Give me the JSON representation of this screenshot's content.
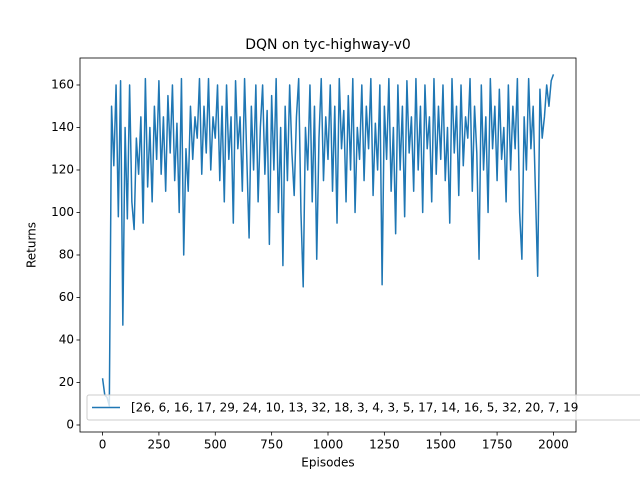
{
  "chart_data": {
    "type": "line",
    "title": "DQN on tyc-highway-v0",
    "x_label": "Episodes",
    "y_label": "Returns",
    "x": [
      0,
      10,
      20,
      30,
      40,
      50,
      60,
      70,
      80,
      90,
      100,
      110,
      120,
      130,
      140,
      150,
      160,
      170,
      180,
      190,
      200,
      210,
      220,
      230,
      240,
      250,
      260,
      270,
      280,
      290,
      300,
      310,
      320,
      330,
      340,
      350,
      360,
      370,
      380,
      390,
      400,
      410,
      420,
      430,
      440,
      450,
      460,
      470,
      480,
      490,
      500,
      510,
      520,
      530,
      540,
      550,
      560,
      570,
      580,
      590,
      600,
      610,
      620,
      630,
      640,
      650,
      660,
      670,
      680,
      690,
      700,
      710,
      720,
      730,
      740,
      750,
      760,
      770,
      780,
      790,
      800,
      810,
      820,
      830,
      840,
      850,
      860,
      870,
      880,
      890,
      900,
      910,
      920,
      930,
      940,
      950,
      960,
      970,
      980,
      990,
      1000,
      1010,
      1020,
      1030,
      1040,
      1050,
      1060,
      1070,
      1080,
      1090,
      1100,
      1110,
      1120,
      1130,
      1140,
      1150,
      1160,
      1170,
      1180,
      1190,
      1200,
      1210,
      1220,
      1230,
      1240,
      1250,
      1260,
      1270,
      1280,
      1290,
      1300,
      1310,
      1320,
      1330,
      1340,
      1350,
      1360,
      1370,
      1380,
      1390,
      1400,
      1410,
      1420,
      1430,
      1440,
      1450,
      1460,
      1470,
      1480,
      1490,
      1500,
      1510,
      1520,
      1530,
      1540,
      1550,
      1560,
      1570,
      1580,
      1590,
      1600,
      1610,
      1620,
      1630,
      1640,
      1650,
      1660,
      1670,
      1680,
      1690,
      1700,
      1710,
      1720,
      1730,
      1740,
      1750,
      1760,
      1770,
      1780,
      1790,
      1800,
      1810,
      1820,
      1830,
      1840,
      1850,
      1860,
      1870,
      1880,
      1890,
      1900,
      1910,
      1920,
      1930,
      1940,
      1950,
      1960,
      1970,
      1980,
      1990,
      2000
    ],
    "series": [
      {
        "name": "[26, 6, 16, 17, 29, 24, 10, 13, 32, 18, 3, 4, 3, 5, 17, 14, 16, 5, 32, 20, 7, 19",
        "color": "#1f77b4",
        "values": [
          22,
          14,
          13,
          9,
          150,
          122,
          160,
          98,
          162,
          47,
          140,
          97,
          160,
          105,
          92,
          135,
          118,
          145,
          95,
          163,
          112,
          140,
          105,
          150,
          125,
          162,
          118,
          145,
          110,
          155,
          128,
          160,
          115,
          142,
          100,
          163,
          80,
          130,
          110,
          150,
          125,
          145,
          135,
          163,
          118,
          150,
          128,
          163,
          120,
          145,
          135,
          160,
          115,
          150,
          105,
          160,
          125,
          145,
          95,
          162,
          130,
          145,
          110,
          163,
          125,
          88,
          150,
          120,
          160,
          105,
          140,
          160,
          118,
          148,
          85,
          155,
          120,
          163,
          100,
          140,
          75,
          150,
          115,
          160,
          128,
          108,
          145,
          163,
          100,
          65,
          140,
          120,
          160,
          105,
          150,
          78,
          135,
          163,
          115,
          145,
          125,
          160,
          110,
          150,
          95,
          163,
          130,
          148,
          105,
          155,
          120,
          163,
          100,
          140,
          125,
          160,
          115,
          150,
          130,
          163,
          108,
          142,
          120,
          160,
          66,
          150,
          125,
          163,
          110,
          140,
          90,
          160,
          120,
          150,
          98,
          162,
          128,
          145,
          110,
          163,
          120,
          150,
          100,
          160,
          130,
          145,
          105,
          163,
          118,
          150,
          125,
          160,
          115,
          140,
          95,
          163,
          128,
          150,
          108,
          160,
          122,
          145,
          135,
          163,
          110,
          150,
          128,
          78,
          160,
          120,
          145,
          100,
          163,
          130,
          150,
          115,
          158,
          125,
          140,
          105,
          160,
          120,
          150,
          130,
          163,
          100,
          78,
          145,
          120,
          163,
          130,
          150,
          110,
          70,
          158,
          135,
          145,
          160,
          150,
          162,
          165
        ]
      }
    ],
    "xlim": [
      -100,
      2100
    ],
    "ylim": [
      -3.3,
      172.7
    ],
    "xticks": [
      0,
      250,
      500,
      750,
      1000,
      1250,
      1500,
      1750,
      2000
    ],
    "yticks": [
      0,
      20,
      40,
      60,
      80,
      100,
      120,
      140,
      160
    ],
    "legend": "lower left"
  }
}
